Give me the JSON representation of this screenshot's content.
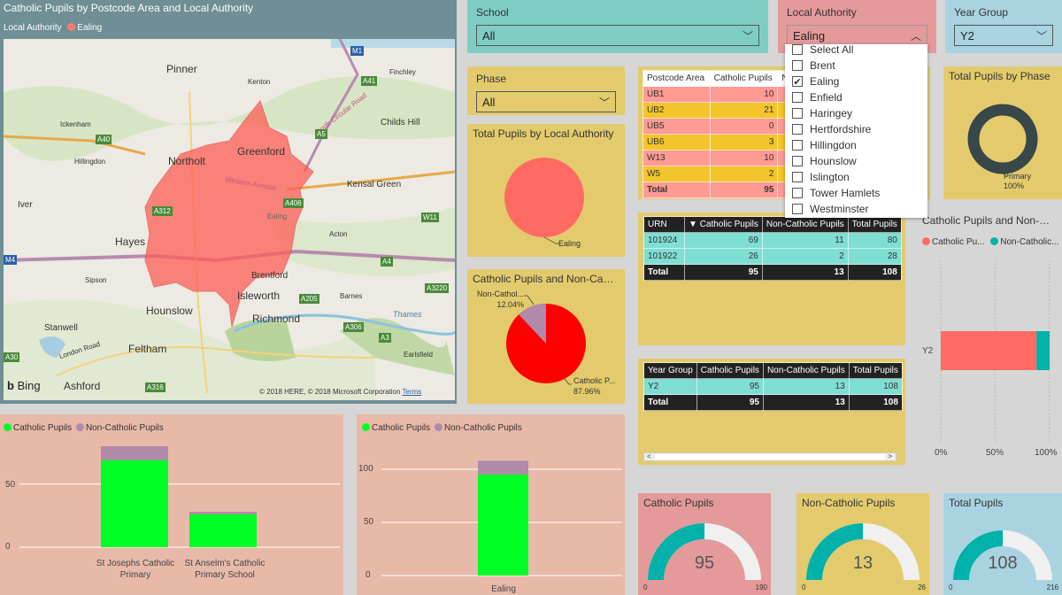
{
  "map": {
    "title": "Catholic Pupils by Postcode Area and Local Authority",
    "legend_label": "Local Authority",
    "legend_item": "Ealing",
    "places": [
      "Pinner",
      "Northolt",
      "Greenford",
      "Hayes",
      "Hounslow",
      "Isleworth",
      "Richmond",
      "Feltham",
      "Ashford",
      "Stanwell",
      "Brentford",
      "Kensal Green",
      "Childs Hill",
      "Ickenham",
      "Iver",
      "Hillingdon",
      "Kenton",
      "Finchley",
      "Acton",
      "Barnes",
      "Earlsfield",
      "Sipson",
      "London Road",
      "Western Avenue",
      "North Circular Road",
      "Thames",
      "Ealing"
    ],
    "roads": [
      "M1",
      "A41",
      "A40",
      "A312",
      "M4",
      "A4",
      "A406",
      "A205",
      "A306",
      "A3",
      "A316",
      "A3220",
      "A30",
      "A5",
      "W11"
    ],
    "attribution": "© 2018 HERE, © 2018 Microsoft Corporation",
    "terms": "Terms",
    "bing": "Bing"
  },
  "slicers": {
    "school": {
      "label": "School",
      "value": "All"
    },
    "local_authority": {
      "label": "Local Authority",
      "value": "Ealing"
    },
    "year_group": {
      "label": "Year Group",
      "value": "Y2"
    },
    "phase": {
      "label": "Phase",
      "value": "All"
    }
  },
  "la_dropdown": {
    "items": [
      {
        "label": "Select All",
        "checked": false
      },
      {
        "label": "Brent",
        "checked": false
      },
      {
        "label": "Ealing",
        "checked": true
      },
      {
        "label": "Enfield",
        "checked": false
      },
      {
        "label": "Haringey",
        "checked": false
      },
      {
        "label": "Hertfordshire",
        "checked": false
      },
      {
        "label": "Hillingdon",
        "checked": false
      },
      {
        "label": "Hounslow",
        "checked": false
      },
      {
        "label": "Islington",
        "checked": false
      },
      {
        "label": "Tower Hamlets",
        "checked": false
      },
      {
        "label": "Westminster",
        "checked": false
      }
    ]
  },
  "postcode_table": {
    "headers": [
      "Postcode Area",
      "Catholic Pupils",
      "N"
    ],
    "rows": [
      [
        "UB1",
        "10",
        ""
      ],
      [
        "UB2",
        "21",
        ""
      ],
      [
        "UB5",
        "0",
        ""
      ],
      [
        "UB6",
        "3",
        ""
      ],
      [
        "W13",
        "10",
        ""
      ],
      [
        "W5",
        "2",
        ""
      ]
    ],
    "total": [
      "Total",
      "95",
      ""
    ]
  },
  "urn_table": {
    "headers": [
      "URN",
      "Catholic Pupils",
      "Non-Catholic Pupils",
      "Total Pupils"
    ],
    "rows": [
      [
        "101924",
        "69",
        "11",
        "80"
      ],
      [
        "101922",
        "26",
        "2",
        "28"
      ]
    ],
    "total": [
      "Total",
      "95",
      "13",
      "108"
    ]
  },
  "year_table": {
    "headers": [
      "Year Group",
      "Catholic Pupils",
      "Non-Catholic Pupils",
      "Total Pupils"
    ],
    "rows": [
      [
        "Y2",
        "95",
        "13",
        "108"
      ]
    ],
    "total": [
      "Total",
      "95",
      "13",
      "108"
    ],
    "scroll_left": "<",
    "scroll_right": ">"
  },
  "pie_la": {
    "title": "Total Pupils by Local Authority",
    "label": "Ealing"
  },
  "pie_cat": {
    "title": "Catholic Pupils and Non-Catholi...",
    "label_non": "Non-Cathol...",
    "pct_non": "12.04%",
    "label_cat": "Catholic P...",
    "pct_cat": "87.96%"
  },
  "donut_phase": {
    "title": "Total Pupils by Phase",
    "label": "Primary",
    "pct": "100%"
  },
  "hbar": {
    "title": "Catholic Pupils and Non-Cath...",
    "legend": [
      "Catholic Pu...",
      "Non-Catholic..."
    ],
    "category": "Y2",
    "ticks": [
      "0%",
      "50%",
      "100%"
    ]
  },
  "gauges": [
    {
      "title": "Catholic Pupils",
      "value": "95",
      "min": "0",
      "max": "190",
      "fraction": 0.5,
      "bg": "#e49a9a"
    },
    {
      "title": "Non-Catholic Pupils",
      "value": "13",
      "min": "0",
      "max": "26",
      "fraction": 0.5,
      "bg": "#e3cb6d"
    },
    {
      "title": "Total Pupils",
      "value": "108",
      "min": "0",
      "max": "216",
      "fraction": 0.5,
      "bg": "#a9d3e0"
    }
  ],
  "colors": {
    "catholic": "#00ff26",
    "non_catholic": "#b08aa8",
    "salmon": "#ff6b63",
    "teal": "#00b2a9"
  },
  "chart_data": [
    {
      "type": "bar",
      "stacked": true,
      "categories": [
        "St Josephs Catholic Primary",
        "St Anselm's Catholic Primary School"
      ],
      "series": [
        {
          "name": "Catholic Pupils",
          "values": [
            69,
            26
          ]
        },
        {
          "name": "Non-Catholic Pupils",
          "values": [
            11,
            2
          ]
        }
      ],
      "yticks": [
        "0",
        "50"
      ],
      "ylim": [
        0,
        80
      ]
    },
    {
      "type": "bar",
      "stacked": true,
      "categories": [
        "Ealing"
      ],
      "series": [
        {
          "name": "Catholic Pupils",
          "values": [
            95
          ]
        },
        {
          "name": "Non-Catholic Pupils",
          "values": [
            13
          ]
        }
      ],
      "yticks": [
        "0",
        "50",
        "100"
      ],
      "ylim": [
        0,
        110
      ]
    },
    {
      "type": "pie",
      "categories": [
        "Catholic Pupils",
        "Non-Catholic Pupils"
      ],
      "values": [
        87.96,
        12.04
      ]
    },
    {
      "type": "bar",
      "orientation": "horizontal",
      "stacked_percent": true,
      "categories": [
        "Y2"
      ],
      "series": [
        {
          "name": "Catholic Pupils",
          "values": [
            87.96
          ]
        },
        {
          "name": "Non-Catholic Pupils",
          "values": [
            12.04
          ]
        }
      ]
    }
  ]
}
